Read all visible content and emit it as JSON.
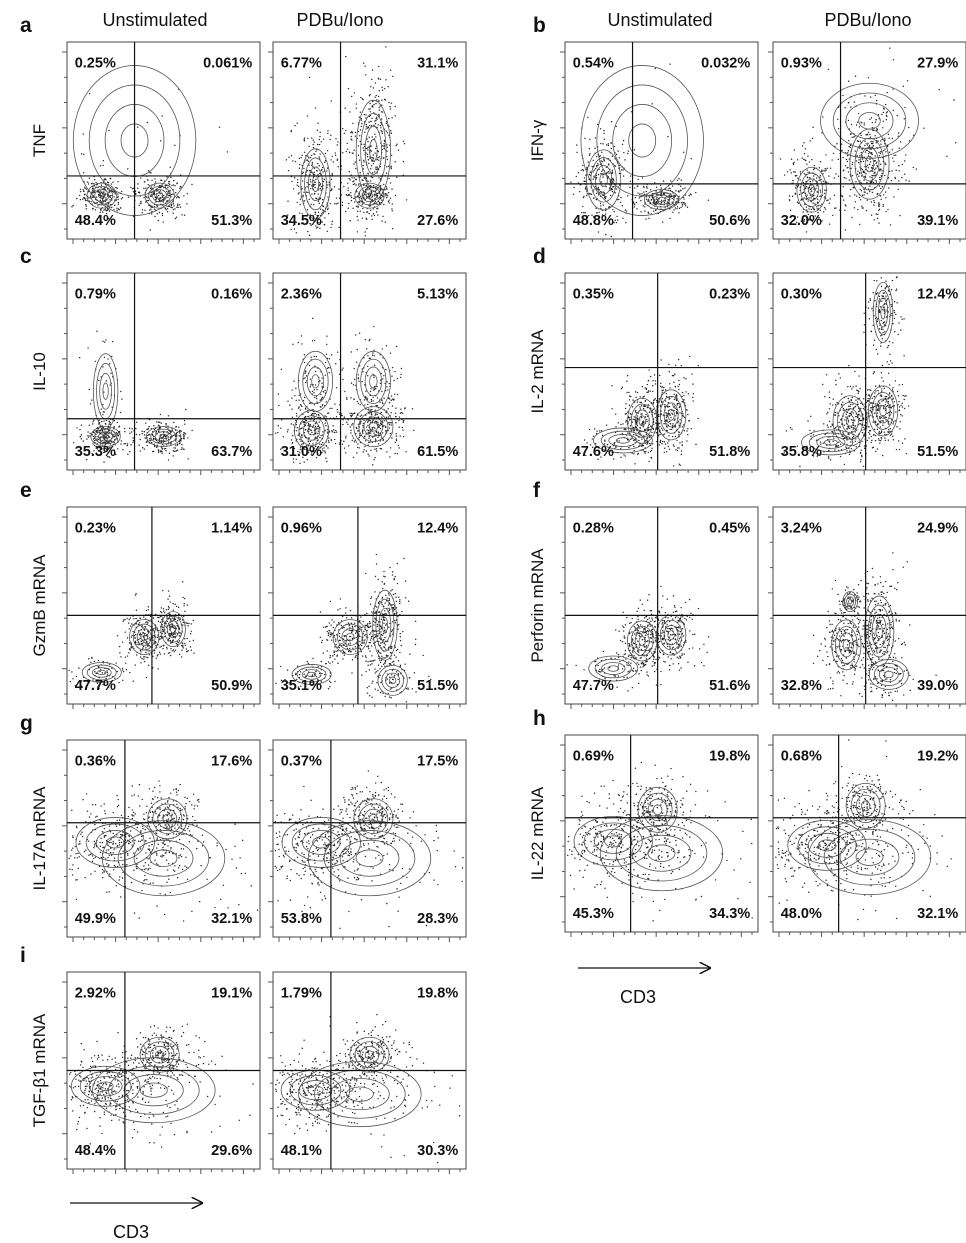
{
  "column_titles": {
    "left_unstim": "Unstimulated",
    "left_stim": "PDBu/Iono",
    "right_unstim": "Unstimulated",
    "right_stim": "PDBu/Iono"
  },
  "xaxis_label_left": "CD3",
  "xaxis_label_right": "CD3",
  "chart_data": [
    {
      "type": "scatter",
      "panel": "a",
      "ylabel": "TNF",
      "plots": [
        {
          "condition": "Unstimulated",
          "quadrants": {
            "ul": "0.25%",
            "ur": "0.061%",
            "ll": "48.4%",
            "lr": "51.3%"
          }
        },
        {
          "condition": "PDBu/Iono",
          "quadrants": {
            "ul": "6.77%",
            "ur": "31.1%",
            "ll": "34.5%",
            "lr": "27.6%"
          }
        }
      ]
    },
    {
      "type": "scatter",
      "panel": "b",
      "ylabel": "IFN-γ",
      "plots": [
        {
          "condition": "Unstimulated",
          "quadrants": {
            "ul": "0.54%",
            "ur": "0.032%",
            "ll": "48.8%",
            "lr": "50.6%"
          }
        },
        {
          "condition": "PDBu/Iono",
          "quadrants": {
            "ul": "0.93%",
            "ur": "27.9%",
            "ll": "32.0%",
            "lr": "39.1%"
          }
        }
      ]
    },
    {
      "type": "scatter",
      "panel": "c",
      "ylabel": "IL-10",
      "plots": [
        {
          "condition": "Unstimulated",
          "quadrants": {
            "ul": "0.79%",
            "ur": "0.16%",
            "ll": "35.3%",
            "lr": "63.7%"
          }
        },
        {
          "condition": "PDBu/Iono",
          "quadrants": {
            "ul": "2.36%",
            "ur": "5.13%",
            "ll": "31.0%",
            "lr": "61.5%"
          }
        }
      ]
    },
    {
      "type": "scatter",
      "panel": "d",
      "ylabel": "IL-2 mRNA",
      "plots": [
        {
          "condition": "Unstimulated",
          "quadrants": {
            "ul": "0.35%",
            "ur": "0.23%",
            "ll": "47.6%",
            "lr": "51.8%"
          }
        },
        {
          "condition": "PDBu/Iono",
          "quadrants": {
            "ul": "0.30%",
            "ur": "12.4%",
            "ll": "35.8%",
            "lr": "51.5%"
          }
        }
      ]
    },
    {
      "type": "scatter",
      "panel": "e",
      "ylabel": "GzmB mRNA",
      "plots": [
        {
          "condition": "Unstimulated",
          "quadrants": {
            "ul": "0.23%",
            "ur": "1.14%",
            "ll": "47.7%",
            "lr": "50.9%"
          }
        },
        {
          "condition": "PDBu/Iono",
          "quadrants": {
            "ul": "0.96%",
            "ur": "12.4%",
            "ll": "35.1%",
            "lr": "51.5%"
          }
        }
      ]
    },
    {
      "type": "scatter",
      "panel": "f",
      "ylabel": "Perforin mRNA",
      "plots": [
        {
          "condition": "Unstimulated",
          "quadrants": {
            "ul": "0.28%",
            "ur": "0.45%",
            "ll": "47.7%",
            "lr": "51.6%"
          }
        },
        {
          "condition": "PDBu/Iono",
          "quadrants": {
            "ul": "3.24%",
            "ur": "24.9%",
            "ll": "32.8%",
            "lr": "39.0%"
          }
        }
      ]
    },
    {
      "type": "scatter",
      "panel": "g",
      "ylabel": "IL-17A mRNA",
      "plots": [
        {
          "condition": "Unstimulated",
          "quadrants": {
            "ul": "0.36%",
            "ur": "17.6%",
            "ll": "49.9%",
            "lr": "32.1%"
          }
        },
        {
          "condition": "PDBu/Iono",
          "quadrants": {
            "ul": "0.37%",
            "ur": "17.5%",
            "ll": "53.8%",
            "lr": "28.3%"
          }
        }
      ]
    },
    {
      "type": "scatter",
      "panel": "h",
      "ylabel": "IL-22 mRNA",
      "plots": [
        {
          "condition": "Unstimulated",
          "quadrants": {
            "ul": "0.69%",
            "ur": "19.8%",
            "ll": "45.3%",
            "lr": "34.3%"
          }
        },
        {
          "condition": "PDBu/Iono",
          "quadrants": {
            "ul": "0.68%",
            "ur": "19.2%",
            "ll": "48.0%",
            "lr": "32.1%"
          }
        }
      ]
    },
    {
      "type": "scatter",
      "panel": "i",
      "ylabel": "TGF-β1 mRNA",
      "plots": [
        {
          "condition": "Unstimulated",
          "quadrants": {
            "ul": "2.92%",
            "ur": "19.1%",
            "ll": "48.4%",
            "lr": "29.6%"
          }
        },
        {
          "condition": "PDBu/Iono",
          "quadrants": {
            "ul": "1.79%",
            "ur": "19.8%",
            "ll": "48.1%",
            "lr": "30.3%"
          }
        }
      ]
    }
  ]
}
